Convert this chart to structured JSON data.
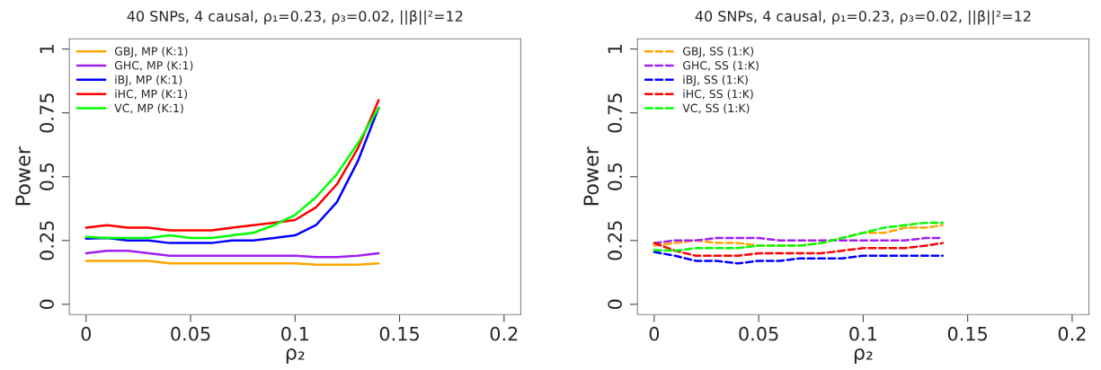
{
  "chart_data": [
    {
      "type": "line",
      "title": "40 SNPs, 4 causal, ρ₁=0.23, ρ₃=0.02, ||β||²=12",
      "xlabel": "ρ₂",
      "ylabel": "Power",
      "x": [
        0,
        0.01,
        0.02,
        0.03,
        0.04,
        0.05,
        0.06,
        0.07,
        0.08,
        0.09,
        0.1,
        0.11,
        0.12,
        0.13,
        0.14
      ],
      "series": [
        {
          "name": "GBJ, MP (K:1)",
          "color": "#ffa500",
          "values": [
            0.17,
            0.17,
            0.17,
            0.17,
            0.16,
            0.16,
            0.16,
            0.16,
            0.16,
            0.16,
            0.16,
            0.155,
            0.155,
            0.155,
            0.16
          ]
        },
        {
          "name": "GHC, MP (K:1)",
          "color": "#a020f0",
          "values": [
            0.2,
            0.21,
            0.21,
            0.2,
            0.19,
            0.19,
            0.19,
            0.19,
            0.19,
            0.19,
            0.19,
            0.185,
            0.185,
            0.19,
            0.2
          ]
        },
        {
          "name": "iBJ, MP (K:1)",
          "color": "#0000ff",
          "values": [
            0.257,
            0.26,
            0.25,
            0.25,
            0.24,
            0.24,
            0.24,
            0.25,
            0.25,
            0.26,
            0.27,
            0.31,
            0.4,
            0.56,
            0.77
          ]
        },
        {
          "name": "iHC, MP (K:1)",
          "color": "#ff0000",
          "values": [
            0.3,
            0.31,
            0.3,
            0.3,
            0.29,
            0.29,
            0.29,
            0.3,
            0.31,
            0.32,
            0.33,
            0.38,
            0.47,
            0.61,
            0.8
          ]
        },
        {
          "name": "VC, MP (K:1)",
          "color": "#00ff00",
          "values": [
            0.264,
            0.26,
            0.26,
            0.26,
            0.27,
            0.26,
            0.26,
            0.27,
            0.28,
            0.31,
            0.35,
            0.42,
            0.51,
            0.63,
            0.77
          ]
        }
      ],
      "xlim": [
        -0.008,
        0.208
      ],
      "ylim": [
        -0.04,
        1.04
      ],
      "xticks": [
        0,
        0.05,
        0.1,
        0.15,
        0.2
      ],
      "yticks": [
        0,
        0.25,
        0.5,
        0.75,
        1
      ],
      "legend": "top left",
      "line_style": "solid",
      "grid": false
    },
    {
      "type": "line",
      "title": "40 SNPs, 4 causal, ρ₁=0.23, ρ₃=0.02, ||β||²=12",
      "xlabel": "ρ₂",
      "ylabel": "Power",
      "x": [
        0,
        0.01,
        0.02,
        0.03,
        0.04,
        0.05,
        0.06,
        0.07,
        0.08,
        0.09,
        0.1,
        0.11,
        0.12,
        0.13,
        0.138
      ],
      "series": [
        {
          "name": "GBJ, SS (1:K)",
          "color": "#ffa500",
          "values": [
            0.23,
            0.24,
            0.25,
            0.24,
            0.24,
            0.23,
            0.23,
            0.23,
            0.24,
            0.26,
            0.28,
            0.28,
            0.3,
            0.3,
            0.31
          ]
        },
        {
          "name": "GHC, SS (1:K)",
          "color": "#a020f0",
          "values": [
            0.24,
            0.25,
            0.25,
            0.26,
            0.26,
            0.26,
            0.25,
            0.25,
            0.25,
            0.25,
            0.25,
            0.25,
            0.25,
            0.26,
            0.26
          ]
        },
        {
          "name": "iBJ, SS (1:K)",
          "color": "#0000ff",
          "values": [
            0.205,
            0.19,
            0.17,
            0.17,
            0.16,
            0.17,
            0.17,
            0.18,
            0.18,
            0.18,
            0.19,
            0.19,
            0.19,
            0.19,
            0.19
          ]
        },
        {
          "name": "iHC, SS (1:K)",
          "color": "#ff0000",
          "values": [
            0.24,
            0.21,
            0.19,
            0.19,
            0.19,
            0.2,
            0.2,
            0.2,
            0.2,
            0.21,
            0.22,
            0.22,
            0.22,
            0.23,
            0.24
          ]
        },
        {
          "name": "VC, SS (1:K)",
          "color": "#00ff00",
          "values": [
            0.212,
            0.21,
            0.22,
            0.22,
            0.22,
            0.23,
            0.23,
            0.23,
            0.24,
            0.26,
            0.28,
            0.3,
            0.31,
            0.32,
            0.32
          ]
        }
      ],
      "xlim": [
        -0.008,
        0.208
      ],
      "ylim": [
        -0.04,
        1.04
      ],
      "xticks": [
        0,
        0.05,
        0.1,
        0.15,
        0.2
      ],
      "yticks": [
        0,
        0.25,
        0.5,
        0.75,
        1
      ],
      "legend": "top left",
      "line_style": "dashed",
      "grid": false
    }
  ]
}
